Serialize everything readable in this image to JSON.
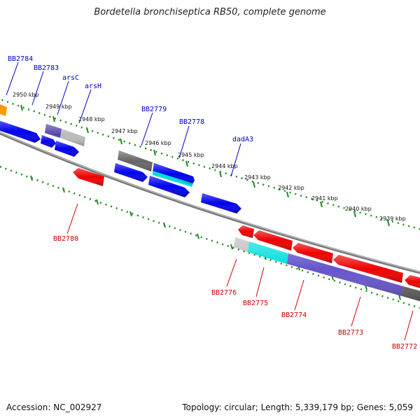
{
  "title": "Bordetella bronchiseptica RB50, complete genome",
  "footer": {
    "accession": "Accession: NC_002927",
    "summary": "Topology: circular; Length: 5,339,179 bp; Genes: 5,059"
  },
  "colors": {
    "backbone": "#7a7a7a",
    "tick": "#1f8a1f",
    "forward_label": "#0000cc",
    "reverse_label": "#cc0000",
    "blue": "#0000ee",
    "red": "#ee0000",
    "cyan": "#00dddd",
    "slate": "#6655cc",
    "gray": "#666666",
    "lightgray": "#bbbbbb",
    "orange": "#ff9900"
  },
  "kbp_labels": [
    "2950 kbp",
    "2949 kbp",
    "2948 kbp",
    "2947 kbp",
    "2946 kbp",
    "2945 kbp",
    "2944 kbp",
    "2943 kbp",
    "2942 kbp",
    "2941 kbp",
    "2940 kbp",
    "2939 kbp"
  ],
  "forward_gene_labels": [
    "BB2784",
    "BB2783",
    "arsC",
    "arsH",
    "BB2779",
    "BB2778",
    "dadA3"
  ],
  "reverse_gene_labels": [
    "BB2780",
    "BB2776",
    "BB2775",
    "BB2774",
    "BB2773",
    "BB2772"
  ]
}
